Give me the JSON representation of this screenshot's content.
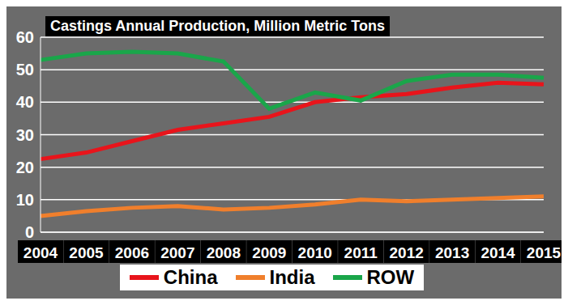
{
  "chart_data": {
    "type": "line",
    "title": "Castings Annual Production, Million Metric Tons",
    "categories": [
      "2004",
      "2005",
      "2006",
      "2007",
      "2008",
      "2009",
      "2010",
      "2011",
      "2012",
      "2013",
      "2014",
      "2015"
    ],
    "series": [
      {
        "name": "China",
        "color": "#e8141b",
        "values": [
          22.5,
          24.5,
          28,
          31.5,
          33.5,
          35.5,
          40,
          41.5,
          42.5,
          44.5,
          46,
          45.5
        ]
      },
      {
        "name": "India",
        "color": "#f07f2c",
        "values": [
          5,
          6.5,
          7.5,
          8,
          7,
          7.5,
          8.5,
          10,
          9.5,
          10,
          10.5,
          11
        ]
      },
      {
        "name": "ROW",
        "color": "#1aa64a",
        "values": [
          53,
          55,
          55.5,
          55,
          52.5,
          38,
          43,
          40.5,
          46.5,
          48.5,
          48.5,
          47.5
        ]
      }
    ],
    "ylim": [
      0,
      60
    ],
    "yticks": [
      0,
      10,
      20,
      30,
      40,
      50,
      60
    ],
    "grid": true,
    "legend": "bottom"
  }
}
